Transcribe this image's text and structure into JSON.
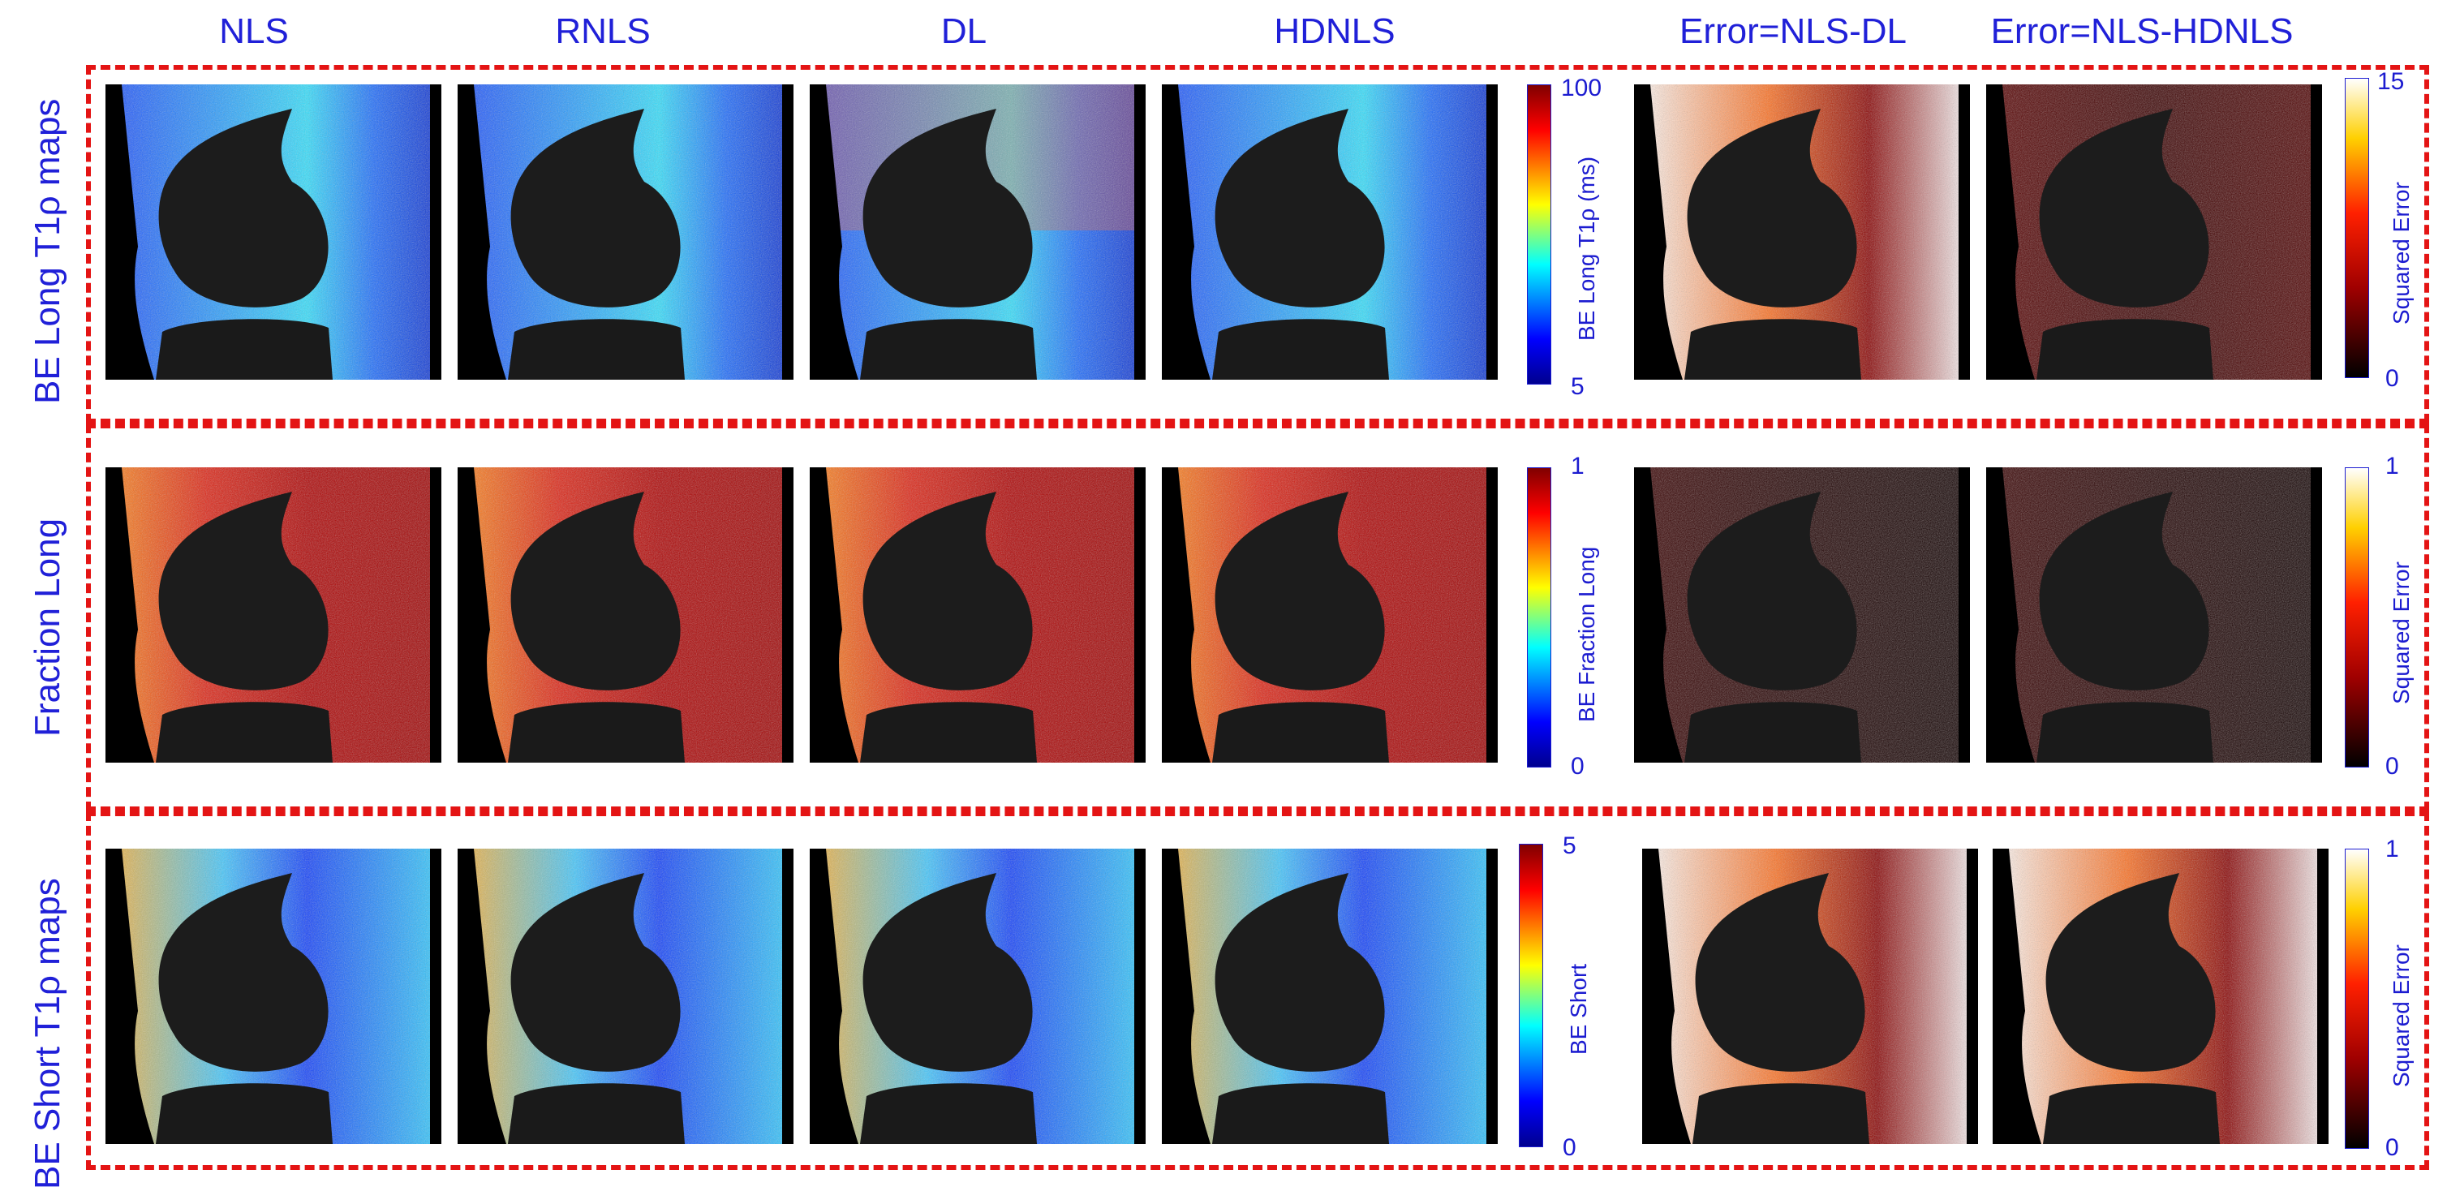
{
  "column_headers": [
    "NLS",
    "RNLS",
    "DL",
    "HDNLS",
    "Error=NLS-DL",
    "Error=NLS-HDNLS"
  ],
  "rows": [
    {
      "label": "BE Long  T1ρ maps",
      "map_colorbar": {
        "label": "BE Long T1ρ (ms)",
        "max": "100",
        "min": "5"
      },
      "error_colorbar": {
        "label": "Squared Error",
        "max": "15",
        "min": "0"
      }
    },
    {
      "label": "Fraction Long",
      "map_colorbar": {
        "label": "BE Fraction Long",
        "max": "1",
        "min": "0"
      },
      "error_colorbar": {
        "label": "Squared Error",
        "max": "1",
        "min": "0"
      }
    },
    {
      "label": "BE Short T1ρ maps",
      "map_colorbar": {
        "label": "BE Short",
        "max": "5",
        "min": "0"
      },
      "error_colorbar": {
        "label": "Squared Error",
        "max": "1",
        "min": "0"
      }
    }
  ],
  "colors": {
    "text": "#2020d8",
    "frame": "#e41414",
    "jet": [
      "#00008f",
      "#0000ff",
      "#00ffff",
      "#ffff00",
      "#ff0000",
      "#800000"
    ],
    "hot": [
      "#000000",
      "#800000",
      "#ff0000",
      "#ffa500",
      "#ffff00",
      "#ffffff"
    ]
  },
  "icons": [
    "bone-silhouette-icon"
  ]
}
